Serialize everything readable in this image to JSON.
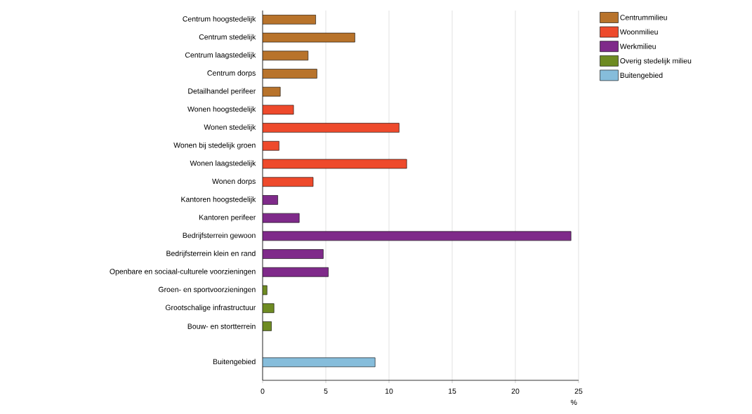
{
  "chart_data": {
    "type": "bar",
    "orientation": "horizontal",
    "xlabel": "%",
    "categories": [
      "Centrum hoogstedelijk",
      "Centrum stedelijk",
      "Centrum laagstedelijk",
      "Centrum dorps",
      "Detailhandel perifeer",
      "Wonen hoogstedelijk",
      "Wonen stedelijk",
      "Wonen bij stedelijk groen",
      "Wonen laagstedelijk",
      "Wonen dorps",
      "Kantoren hoogstedelijk",
      "Kantoren perifeer",
      "Bedrijfsterrein gewoon",
      "Bedrijfsterrein klein en rand",
      "Openbare en sociaal-culturele voorzieningen",
      "Groen- en sportvoorzieningen",
      "Grootschalige infrastructuur",
      "Bouw- en stortterrein",
      null,
      "Buitengebied"
    ],
    "series": [
      {
        "name": "Centrummilieu",
        "color": "#b8732b",
        "values": [
          4.2,
          7.3,
          3.6,
          4.3,
          1.4,
          null,
          null,
          null,
          null,
          null,
          null,
          null,
          null,
          null,
          null,
          null,
          null,
          null,
          null,
          null
        ]
      },
      {
        "name": "Woonmilieu",
        "color": "#ee4a2c",
        "values": [
          null,
          null,
          null,
          null,
          null,
          2.45,
          10.8,
          1.3,
          11.4,
          4.0,
          null,
          null,
          null,
          null,
          null,
          null,
          null,
          null,
          null,
          null
        ]
      },
      {
        "name": "Werkmilieu",
        "color": "#7f2a8a",
        "values": [
          null,
          null,
          null,
          null,
          null,
          null,
          null,
          null,
          null,
          null,
          1.2,
          2.9,
          24.4,
          4.8,
          5.2,
          null,
          null,
          null,
          null,
          null
        ]
      },
      {
        "name": "Overig stedelijk milieu",
        "color": "#6e8b22",
        "values": [
          null,
          null,
          null,
          null,
          null,
          null,
          null,
          null,
          null,
          null,
          null,
          null,
          null,
          null,
          null,
          0.35,
          0.9,
          0.7,
          null,
          null
        ]
      },
      {
        "name": "Buitengebied",
        "color": "#86bddb",
        "values": [
          null,
          null,
          null,
          null,
          null,
          null,
          null,
          null,
          null,
          null,
          null,
          null,
          null,
          null,
          null,
          null,
          null,
          null,
          null,
          8.9
        ]
      }
    ],
    "xlim": [
      0,
      25
    ],
    "xticks": [
      0,
      5,
      10,
      15,
      20,
      25
    ],
    "grid": "x",
    "legend": "top right"
  }
}
